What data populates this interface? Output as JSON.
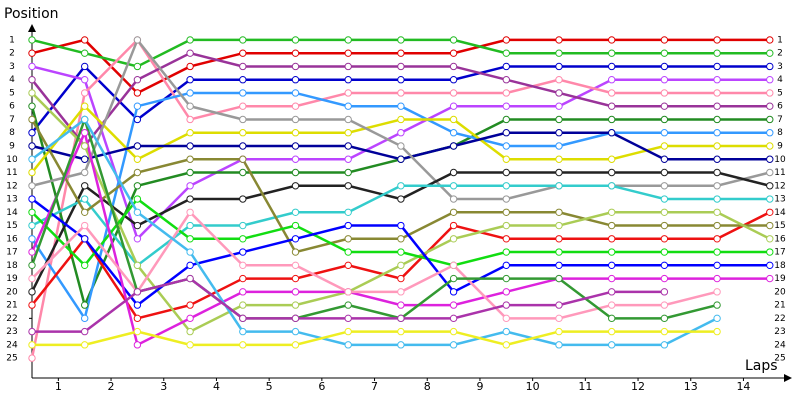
{
  "chart_data": {
    "type": "line",
    "y_label": "Position",
    "x_label": "Laps",
    "x": [
      0,
      1,
      2,
      3,
      4,
      5,
      6,
      7,
      8,
      9,
      10,
      11,
      12,
      13,
      14
    ],
    "xlim": [
      0,
      14.3
    ],
    "xticks": [
      {
        "value": 0.5,
        "label": "1"
      },
      {
        "value": 1.5,
        "label": "2"
      },
      {
        "value": 2.5,
        "label": "3"
      },
      {
        "value": 3.5,
        "label": "4"
      },
      {
        "value": 4.5,
        "label": "5"
      },
      {
        "value": 5.5,
        "label": "6"
      },
      {
        "value": 6.5,
        "label": "7"
      },
      {
        "value": 7.5,
        "label": "8"
      },
      {
        "value": 8.5,
        "label": "9"
      },
      {
        "value": 9.5,
        "label": "10"
      },
      {
        "value": 10.5,
        "label": "11"
      },
      {
        "value": 11.5,
        "label": "12"
      },
      {
        "value": 12.5,
        "label": "13"
      },
      {
        "value": 13.5,
        "label": "14"
      }
    ],
    "ylim": [
      26.5,
      0.1
    ],
    "yticks": [
      1,
      2,
      3,
      4,
      5,
      6,
      7,
      8,
      9,
      10,
      11,
      12,
      13,
      14,
      15,
      16,
      17,
      18,
      19,
      20,
      21,
      22,
      23,
      24,
      25
    ],
    "series": [
      {
        "color": "#e00000",
        "values": [
          2,
          1,
          5,
          3,
          2,
          2,
          2,
          2,
          2,
          1,
          1,
          1,
          1,
          1,
          1
        ]
      },
      {
        "color": "#22bb22",
        "values": [
          1,
          2,
          3,
          1,
          1,
          1,
          1,
          1,
          1,
          2,
          2,
          2,
          2,
          2,
          2
        ]
      },
      {
        "color": "#0000cc",
        "values": [
          8,
          3,
          7,
          4,
          4,
          4,
          4,
          4,
          4,
          3,
          3,
          3,
          3,
          3,
          3
        ]
      },
      {
        "color": "#bb44ff",
        "values": [
          3,
          4,
          16,
          12,
          10,
          10,
          10,
          8,
          6,
          6,
          6,
          4,
          4,
          4,
          4
        ]
      },
      {
        "color": "#ff88aa",
        "values": [
          25,
          5,
          1,
          7,
          6,
          6,
          5,
          5,
          5,
          5,
          4,
          5,
          5,
          5,
          5
        ]
      },
      {
        "color": "#993399",
        "values": [
          4,
          9,
          4,
          2,
          3,
          3,
          3,
          3,
          3,
          4,
          5,
          6,
          6,
          6,
          6
        ]
      },
      {
        "color": "#228b22",
        "values": [
          6,
          21,
          12,
          11,
          11,
          11,
          11,
          10,
          9,
          7,
          7,
          7,
          7,
          7,
          7
        ]
      },
      {
        "color": "#3399ff",
        "values": [
          16,
          22,
          6,
          5,
          5,
          5,
          6,
          6,
          8,
          9,
          9,
          8,
          8,
          8,
          8
        ]
      },
      {
        "color": "#dddd00",
        "values": [
          11,
          6,
          10,
          8,
          8,
          8,
          8,
          7,
          7,
          10,
          10,
          10,
          9,
          9,
          9
        ]
      },
      {
        "color": "#000099",
        "values": [
          9,
          10,
          9,
          9,
          9,
          9,
          9,
          10,
          9,
          8,
          8,
          8,
          10,
          10,
          10
        ]
      },
      {
        "color": "#999999",
        "values": [
          12,
          11,
          1,
          6,
          7,
          7,
          7,
          9,
          13,
          13,
          12,
          12,
          12,
          12,
          11
        ]
      },
      {
        "color": "#222222",
        "values": [
          20,
          12,
          15,
          13,
          13,
          12,
          12,
          13,
          11,
          11,
          11,
          11,
          11,
          11,
          12
        ]
      },
      {
        "color": "#33cccc",
        "values": [
          15,
          13,
          18,
          15,
          15,
          14,
          14,
          12,
          12,
          12,
          12,
          12,
          13,
          13,
          13
        ]
      },
      {
        "color": "#ee1111",
        "values": [
          21,
          16,
          22,
          21,
          19,
          19,
          18,
          19,
          15,
          16,
          16,
          16,
          16,
          16,
          14
        ]
      },
      {
        "color": "#888833",
        "values": [
          7,
          14,
          11,
          10,
          10,
          17,
          16,
          16,
          14,
          14,
          14,
          15,
          15,
          15,
          15
        ]
      },
      {
        "color": "#aacc55",
        "values": [
          5,
          9,
          18,
          23,
          21,
          21,
          20,
          18,
          16,
          15,
          15,
          14,
          14,
          14,
          16
        ]
      },
      {
        "color": "#11dd11",
        "values": [
          14,
          18,
          13,
          16,
          16,
          15,
          17,
          17,
          18,
          17,
          17,
          17,
          17,
          17,
          17
        ]
      },
      {
        "color": "#0000ff",
        "values": [
          13,
          16,
          21,
          18,
          17,
          16,
          15,
          15,
          20,
          18,
          18,
          18,
          18,
          18,
          18
        ]
      },
      {
        "color": "#dd22dd",
        "values": [
          17,
          8,
          24,
          22,
          20,
          20,
          20,
          21,
          21,
          20,
          19,
          19,
          19,
          19,
          19
        ]
      },
      {
        "color": "#ff99bb",
        "values": [
          19,
          15,
          20,
          14,
          18,
          18,
          20,
          20,
          18,
          22,
          22,
          21,
          21,
          20,
          null
        ]
      },
      {
        "color": "#339933",
        "values": [
          18,
          7,
          20,
          19,
          22,
          22,
          21,
          22,
          19,
          19,
          19,
          22,
          22,
          21,
          null
        ]
      },
      {
        "color": "#44bbee",
        "values": [
          10,
          7,
          14,
          17,
          23,
          23,
          24,
          24,
          24,
          23,
          24,
          24,
          24,
          22,
          null
        ]
      },
      {
        "color": "#eeee22",
        "values": [
          24,
          24,
          23,
          24,
          24,
          24,
          23,
          23,
          23,
          24,
          23,
          23,
          23,
          23,
          null
        ]
      },
      {
        "color": "#aa33aa",
        "values": [
          23,
          23,
          20,
          19,
          22,
          22,
          22,
          22,
          22,
          21,
          21,
          20,
          20,
          null,
          null
        ]
      }
    ]
  }
}
